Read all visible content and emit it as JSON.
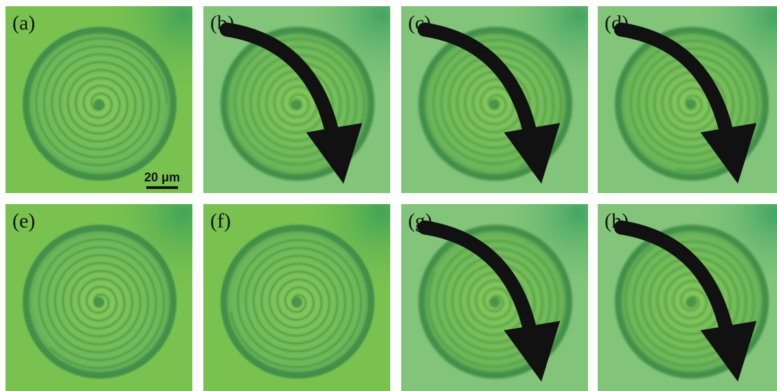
{
  "panels": [
    {
      "label": "(a)",
      "arrow": false,
      "tone": "bright",
      "scale": true
    },
    {
      "label": "(b)",
      "arrow": true,
      "tone": "pale",
      "scale": false
    },
    {
      "label": "(c)",
      "arrow": true,
      "tone": "pale",
      "scale": false
    },
    {
      "label": "(d)",
      "arrow": true,
      "tone": "pale",
      "scale": false
    },
    {
      "label": "(e)",
      "arrow": false,
      "tone": "bright",
      "scale": false
    },
    {
      "label": "(f)",
      "arrow": false,
      "tone": "bright",
      "scale": false
    },
    {
      "label": "(g)",
      "arrow": true,
      "tone": "pale",
      "scale": false
    },
    {
      "label": "(h)",
      "arrow": true,
      "tone": "pale",
      "scale": false
    }
  ],
  "scale_bar": {
    "label": "20 μm"
  },
  "colors": {
    "bright_bg": "#79c24f",
    "pale_bg": "#82c57a",
    "ring": "#3c8a47",
    "spiral": "#4f9c46",
    "arrow": "#111111"
  }
}
